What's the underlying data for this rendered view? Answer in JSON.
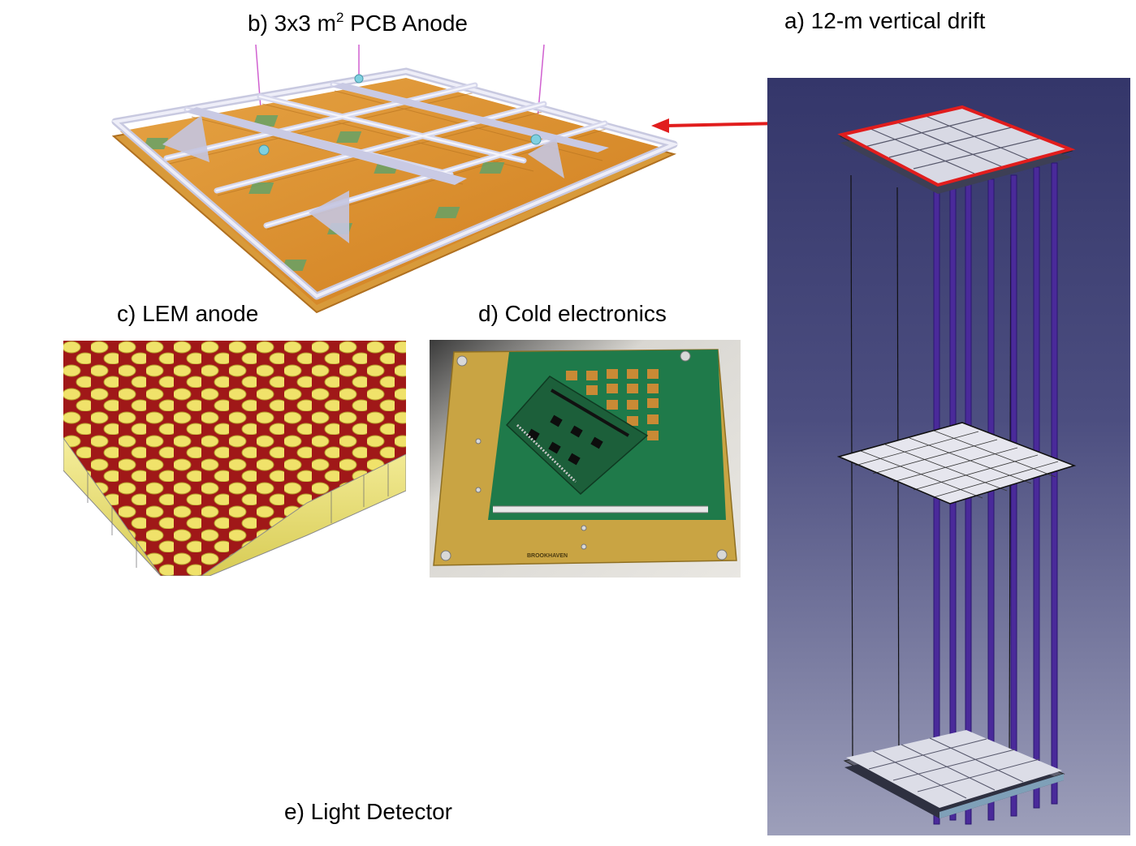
{
  "labels": {
    "a": "a) 12-m vertical drift",
    "b_prefix": "b) 3x3 m",
    "b_sup": "2",
    "b_suffix": " PCB Anode",
    "c": "c) LEM anode",
    "d": "d) Cold electronics",
    "e": "e) Light Detector"
  },
  "board_text": {
    "brand": "BROOKHAVEN"
  },
  "colors": {
    "cad_background": "#3d3f70",
    "highlight_red": "#e11d1d",
    "pcb_orange": "#e0902a",
    "frame_lavender": "#dfe0f0",
    "lem_red": "#a01818",
    "lem_yellow": "#f0e26a",
    "pcb_green": "#1f7a4a",
    "pcb_tan": "#c9a443",
    "field_cage_purple": "#4a2a9a"
  }
}
